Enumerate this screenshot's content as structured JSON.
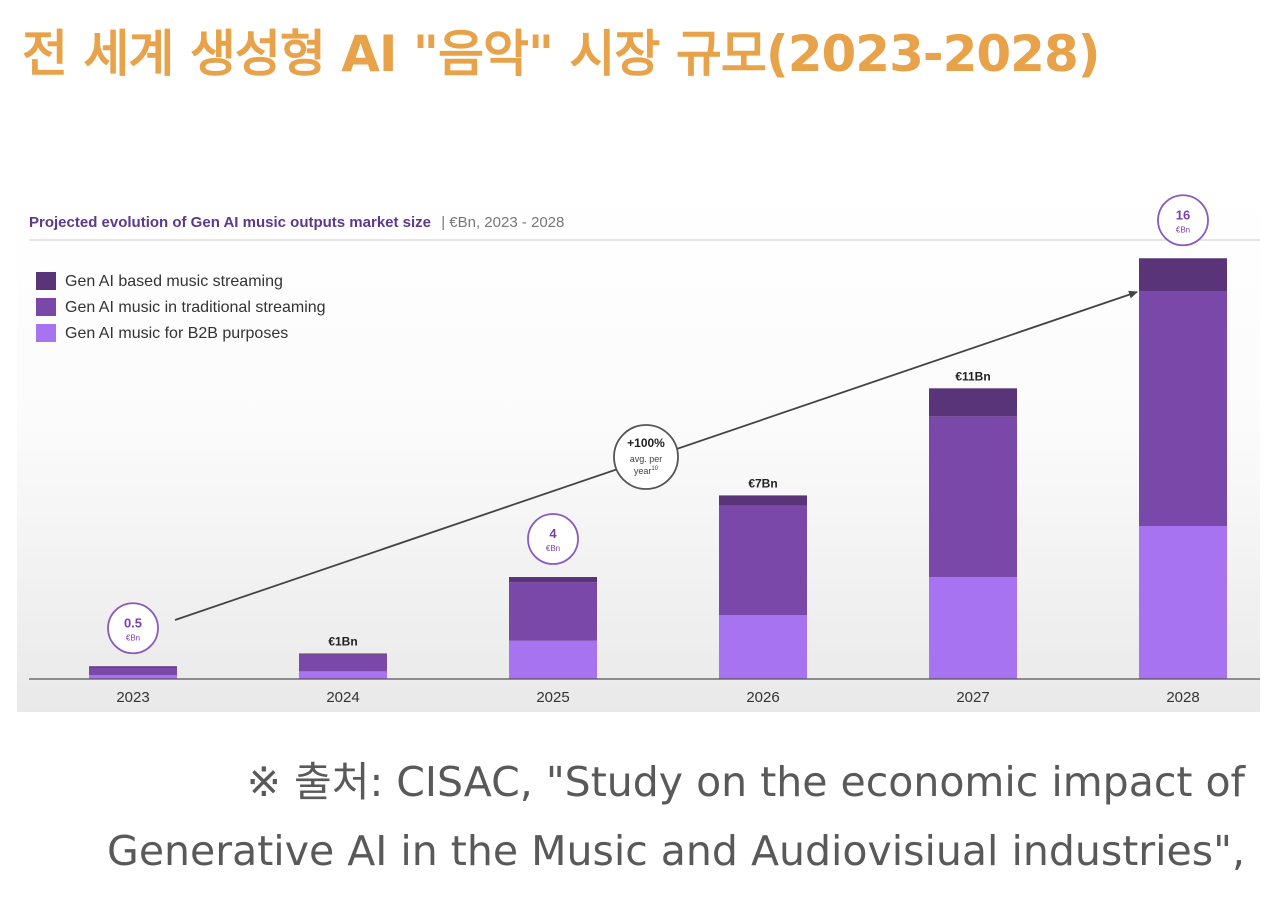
{
  "page": {
    "title": "전 세계 생성형 AI \"음악\" 시장 규모(2023-2028)",
    "source_line1": "※ 출처: CISAC, \"Study on the economic impact of",
    "source_line2": "Generative AI in the Music and Audiovisiual industries\","
  },
  "chart_data": {
    "type": "bar",
    "stacked": true,
    "title": "Projected evolution of Gen AI music outputs market size",
    "subtitle": "| €Bn, 2023 - 2028",
    "categories": [
      "2023",
      "2024",
      "2025",
      "2026",
      "2027",
      "2028"
    ],
    "series": [
      {
        "name": "Gen AI music for B2B purposes",
        "color": "#a873f0",
        "values": [
          0.15,
          0.3,
          1.5,
          2.5,
          4.0,
          6.0
        ]
      },
      {
        "name": "Gen AI music in traditional streaming",
        "color": "#7a48a8",
        "values": [
          0.3,
          0.65,
          2.3,
          4.3,
          6.3,
          9.2
        ]
      },
      {
        "name": "Gen AI based music streaming",
        "color": "#5a3478",
        "values": [
          0.05,
          0.05,
          0.2,
          0.4,
          1.1,
          1.3
        ]
      }
    ],
    "total_labels": [
      {
        "category": "2023",
        "value": "0.5",
        "unit": "€Bn",
        "style": "circle"
      },
      {
        "category": "2024",
        "text": "€1Bn",
        "style": "plain"
      },
      {
        "category": "2025",
        "value": "4",
        "unit": "€Bn",
        "style": "circle"
      },
      {
        "category": "2026",
        "text": "€7Bn",
        "style": "plain"
      },
      {
        "category": "2027",
        "text": "€11Bn",
        "style": "plain"
      },
      {
        "category": "2028",
        "value": "16",
        "unit": "€Bn",
        "style": "circle"
      }
    ],
    "growth_annotation": {
      "value": "+100%",
      "line2": "avg. per",
      "line3": "year",
      "footnote": "10"
    },
    "legend_position": "top-left",
    "ylim": [
      0,
      18
    ],
    "grid": false
  }
}
